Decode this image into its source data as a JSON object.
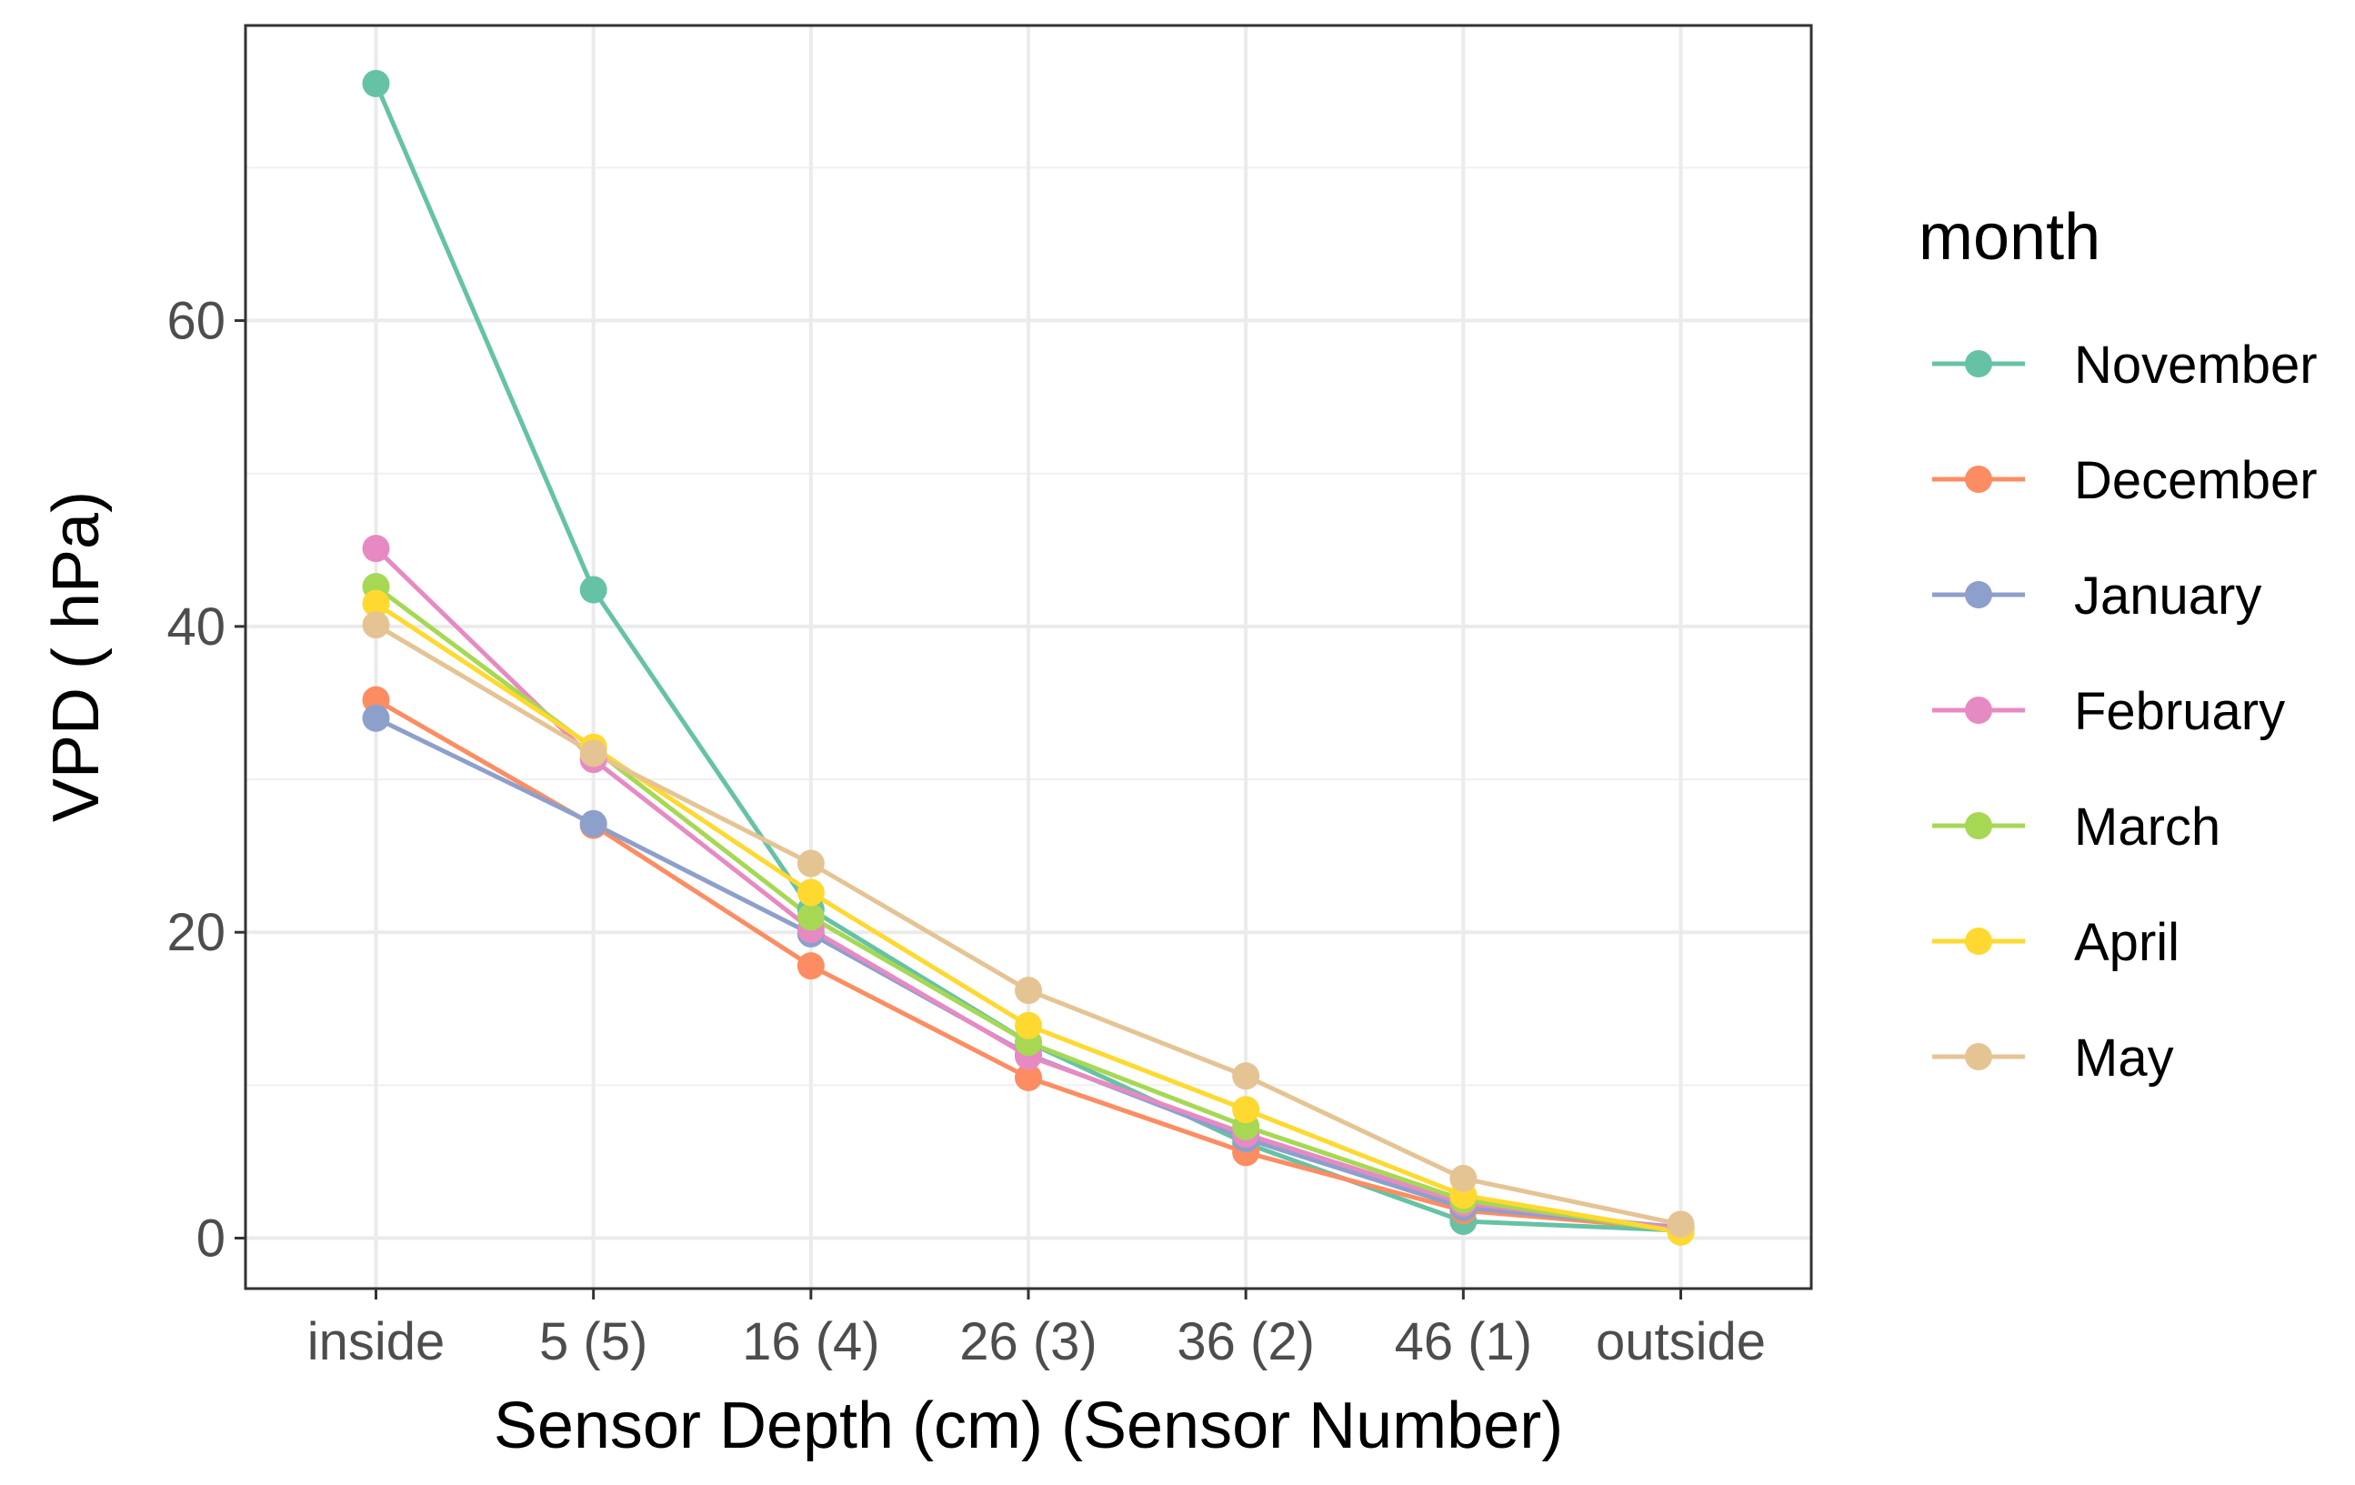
{
  "chart_data": {
    "type": "line",
    "title": "",
    "xlabel": "Sensor Depth (cm) (Sensor Number)",
    "ylabel": "VPD ( hPa)",
    "categories": [
      "inside",
      "5 (5)",
      "16 (4)",
      "26 (3)",
      "36 (2)",
      "46 (1)",
      "outside"
    ],
    "ylim": [
      -3.3,
      79.3
    ],
    "yticks": [
      0,
      20,
      40,
      60
    ],
    "y_tick_labels": [
      "0",
      "20",
      "40",
      "60"
    ],
    "grid": true,
    "legend": {
      "title": "month",
      "position": "right"
    },
    "series": [
      {
        "name": "November",
        "color": "#66C2A5",
        "values": [
          75.5,
          42.4,
          21.5,
          12.8,
          6.2,
          1.1,
          0.5
        ]
      },
      {
        "name": "December",
        "color": "#FC8D62",
        "values": [
          35.2,
          27.0,
          17.8,
          10.5,
          5.6,
          1.8,
          0.6
        ]
      },
      {
        "name": "January",
        "color": "#8DA0CB",
        "values": [
          34.0,
          27.1,
          19.9,
          12.0,
          6.5,
          2.0,
          0.7
        ]
      },
      {
        "name": "February",
        "color": "#E78AC3",
        "values": [
          45.1,
          31.3,
          20.2,
          11.9,
          6.8,
          2.3,
          0.6
        ]
      },
      {
        "name": "March",
        "color": "#A6D854",
        "values": [
          42.6,
          32.0,
          21.0,
          12.8,
          7.3,
          2.5,
          0.4
        ]
      },
      {
        "name": "April",
        "color": "#FFD92F",
        "values": [
          41.5,
          32.1,
          22.6,
          13.9,
          8.4,
          2.8,
          0.4
        ]
      },
      {
        "name": "May",
        "color": "#E5C494",
        "values": [
          40.1,
          31.7,
          24.5,
          16.2,
          10.6,
          3.9,
          0.9
        ]
      }
    ]
  }
}
